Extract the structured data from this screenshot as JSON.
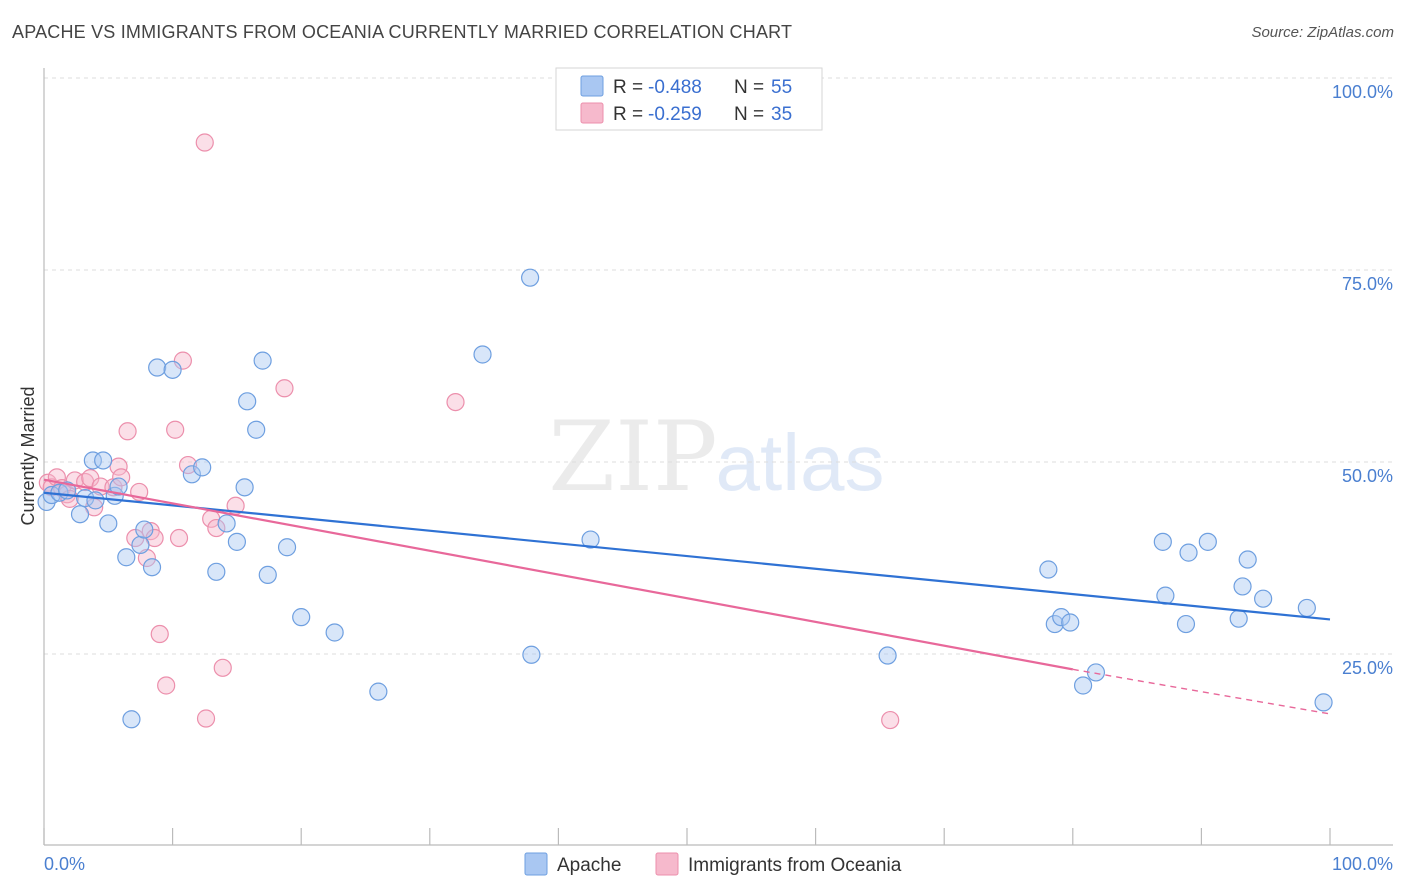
{
  "header": {
    "title": "APACHE VS IMMIGRANTS FROM OCEANIA CURRENTLY MARRIED CORRELATION CHART",
    "source": "Source: ZipAtlas.com"
  },
  "watermark": {
    "part1": "ZIP",
    "part2": "atlas"
  },
  "colors": {
    "blue_fill": "#a9c7f2",
    "blue_stroke": "#6e9fe0",
    "blue_line": "#2f72d4",
    "pink_fill": "#f6b9cc",
    "pink_stroke": "#ec8fac",
    "pink_line": "#e8689a",
    "grid": "#dddddd",
    "tick_text": "#4a7fd0"
  },
  "chart_data": {
    "type": "scatter",
    "title": "APACHE VS IMMIGRANTS FROM OCEANIA CURRENTLY MARRIED CORRELATION CHART",
    "xlabel": "",
    "ylabel": "Currently Married",
    "xlim": [
      0,
      100
    ],
    "ylim": [
      0,
      102
    ],
    "x_tick_labels": [
      "0.0%",
      "100.0%"
    ],
    "y_ticks": [
      25,
      50,
      75,
      100
    ],
    "y_tick_labels": [
      "25.0%",
      "50.0%",
      "75.0%",
      "100.0%"
    ],
    "legend": [
      {
        "name": "Apache",
        "r_label": "R =",
        "r_value": "-0.488",
        "n_label": "N =",
        "n_value": "55"
      },
      {
        "name": "Immigrants from Oceania",
        "r_label": "R =",
        "r_value": "-0.259",
        "n_label": "N =",
        "n_value": "35"
      }
    ],
    "series": [
      {
        "name": "Apache",
        "trend": {
          "x0": 0,
          "y0": 46,
          "x1": 100,
          "y1": 29.5
        },
        "points": [
          [
            0.2,
            44.8
          ],
          [
            0.6,
            45.7
          ],
          [
            1.2,
            46.0
          ],
          [
            1.8,
            46.3
          ],
          [
            2.8,
            43.2
          ],
          [
            3.2,
            45.3
          ],
          [
            3.8,
            50.2
          ],
          [
            4.6,
            50.2
          ],
          [
            5.0,
            42.0
          ],
          [
            5.5,
            45.6
          ],
          [
            5.8,
            46.8
          ],
          [
            6.4,
            37.6
          ],
          [
            6.8,
            16.5
          ],
          [
            7.5,
            39.2
          ],
          [
            7.8,
            41.2
          ],
          [
            8.4,
            36.3
          ],
          [
            8.8,
            62.3
          ],
          [
            10.0,
            62.0
          ],
          [
            11.5,
            48.4
          ],
          [
            12.3,
            49.3
          ],
          [
            13.4,
            35.7
          ],
          [
            14.2,
            42.0
          ],
          [
            15.0,
            39.6
          ],
          [
            15.6,
            46.7
          ],
          [
            15.8,
            57.9
          ],
          [
            16.5,
            54.2
          ],
          [
            17.0,
            63.2
          ],
          [
            17.4,
            35.3
          ],
          [
            18.9,
            38.9
          ],
          [
            20.0,
            29.8
          ],
          [
            22.6,
            27.8
          ],
          [
            26.0,
            20.1
          ],
          [
            34.1,
            64.0
          ],
          [
            37.8,
            74.0
          ],
          [
            37.9,
            24.9
          ],
          [
            42.5,
            39.9
          ],
          [
            65.6,
            24.8
          ],
          [
            78.1,
            36.0
          ],
          [
            78.6,
            28.9
          ],
          [
            79.1,
            29.8
          ],
          [
            79.8,
            29.1
          ],
          [
            80.8,
            20.9
          ],
          [
            81.8,
            22.6
          ],
          [
            87.0,
            39.6
          ],
          [
            87.2,
            32.6
          ],
          [
            88.8,
            28.9
          ],
          [
            89.0,
            38.2
          ],
          [
            90.5,
            39.6
          ],
          [
            92.9,
            29.6
          ],
          [
            93.2,
            33.8
          ],
          [
            93.6,
            37.3
          ],
          [
            94.8,
            32.2
          ],
          [
            98.2,
            31.0
          ],
          [
            99.5,
            18.7
          ],
          [
            4.0,
            45.0
          ]
        ]
      },
      {
        "name": "Immigrants from Oceania",
        "trend": {
          "x0": 0,
          "y0": 47.7,
          "x1": 80,
          "y1": 23.0,
          "dash_x1": 100,
          "dash_y1": 17.2
        },
        "points": [
          [
            0.3,
            47.3
          ],
          [
            0.6,
            46.7
          ],
          [
            1.0,
            48.0
          ],
          [
            1.4,
            46.6
          ],
          [
            1.8,
            45.8
          ],
          [
            2.4,
            47.6
          ],
          [
            3.2,
            47.4
          ],
          [
            3.6,
            47.9
          ],
          [
            3.9,
            44.1
          ],
          [
            4.4,
            46.8
          ],
          [
            5.4,
            46.7
          ],
          [
            5.8,
            49.4
          ],
          [
            6.0,
            48.0
          ],
          [
            6.5,
            54.0
          ],
          [
            7.4,
            46.1
          ],
          [
            7.1,
            40.1
          ],
          [
            8.0,
            37.5
          ],
          [
            8.3,
            41.0
          ],
          [
            8.6,
            40.1
          ],
          [
            9.0,
            27.6
          ],
          [
            9.5,
            20.9
          ],
          [
            10.2,
            54.2
          ],
          [
            10.5,
            40.1
          ],
          [
            10.8,
            63.2
          ],
          [
            11.2,
            49.6
          ],
          [
            12.5,
            91.6
          ],
          [
            12.6,
            16.6
          ],
          [
            13.0,
            42.6
          ],
          [
            13.4,
            41.4
          ],
          [
            13.9,
            23.2
          ],
          [
            14.9,
            44.3
          ],
          [
            18.7,
            59.6
          ],
          [
            32.0,
            57.8
          ],
          [
            65.8,
            16.4
          ],
          [
            2.0,
            45.2
          ]
        ]
      }
    ]
  }
}
